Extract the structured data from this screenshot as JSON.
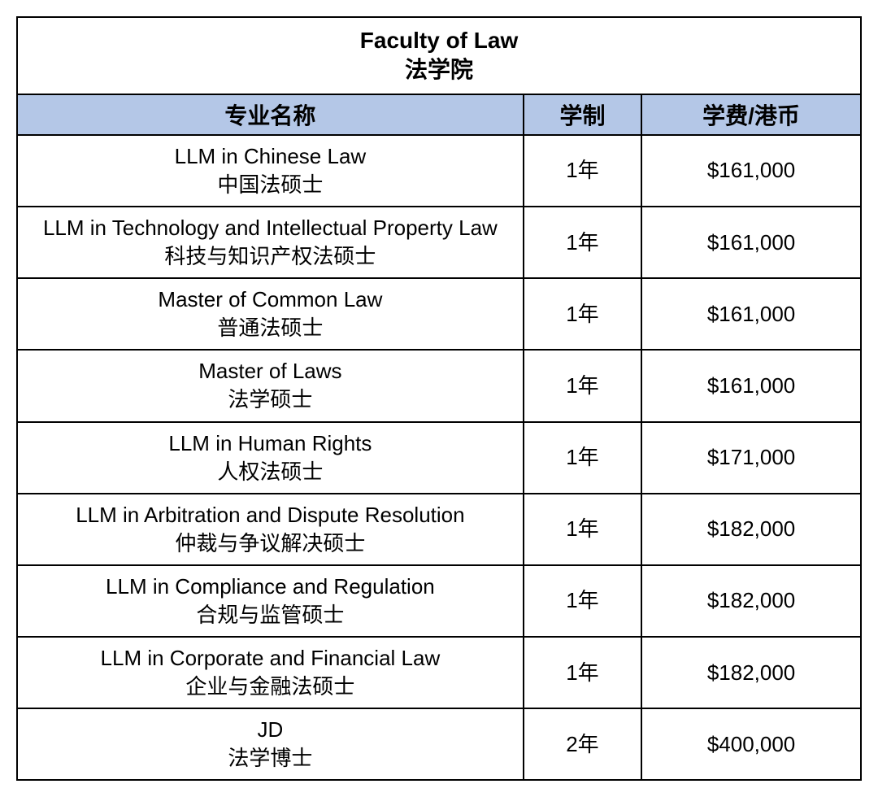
{
  "table": {
    "title_en": "Faculty of Law",
    "title_zh": "法学院",
    "header_bg_color": "#b4c7e7",
    "border_color": "#000000",
    "background_color": "#ffffff",
    "columns": {
      "program": "专业名称",
      "duration": "学制",
      "tuition": "学费/港币"
    },
    "rows": [
      {
        "program_en": "LLM in Chinese Law",
        "program_zh": "中国法硕士",
        "duration": "1年",
        "tuition": "$161,000"
      },
      {
        "program_en": "LLM in Technology and Intellectual Property Law",
        "program_zh": "科技与知识产权法硕士",
        "duration": "1年",
        "tuition": "$161,000"
      },
      {
        "program_en": "Master of Common Law",
        "program_zh": "普通法硕士",
        "duration": "1年",
        "tuition": "$161,000"
      },
      {
        "program_en": "Master of Laws",
        "program_zh": "法学硕士",
        "duration": "1年",
        "tuition": "$161,000"
      },
      {
        "program_en": "LLM in Human Rights",
        "program_zh": "人权法硕士",
        "duration": "1年",
        "tuition": "$171,000"
      },
      {
        "program_en": "LLM in Arbitration and Dispute Resolution",
        "program_zh": "仲裁与争议解决硕士",
        "duration": "1年",
        "tuition": "$182,000"
      },
      {
        "program_en": "LLM in Compliance and Regulation",
        "program_zh": "合规与监管硕士",
        "duration": "1年",
        "tuition": "$182,000"
      },
      {
        "program_en": "LLM in Corporate and Financial Law",
        "program_zh": "企业与金融法硕士",
        "duration": "1年",
        "tuition": "$182,000"
      },
      {
        "program_en": "JD",
        "program_zh": "法学博士",
        "duration": "2年",
        "tuition": "$400,000"
      }
    ]
  }
}
